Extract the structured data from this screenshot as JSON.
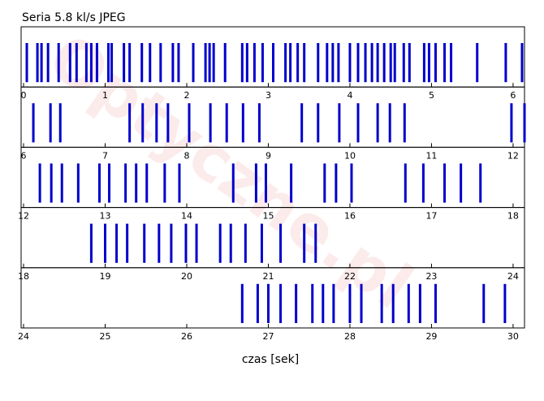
{
  "chart_data": [
    {
      "type": "event",
      "title": "Seria 5.8 kl/s JPEG",
      "color": "#0000cc",
      "xlim": [
        -0.03,
        6.14
      ],
      "xticks": [
        0,
        1,
        2,
        3,
        4,
        5,
        6
      ],
      "x": [
        0.04,
        0.17,
        0.22,
        0.3,
        0.43,
        0.57,
        0.65,
        0.77,
        0.83,
        0.9,
        1.04,
        1.08,
        1.23,
        1.3,
        1.45,
        1.55,
        1.68,
        1.83,
        1.9,
        2.08,
        2.23,
        2.28,
        2.33,
        2.47,
        2.68,
        2.74,
        2.83,
        2.93,
        3.06,
        3.21,
        3.27,
        3.36,
        3.44,
        3.61,
        3.72,
        3.79,
        3.86,
        4.0,
        4.1,
        4.19,
        4.27,
        4.34,
        4.42,
        4.5,
        4.55,
        4.66,
        4.73,
        4.91,
        4.97,
        5.05,
        5.16,
        5.24,
        5.56,
        5.91,
        6.11
      ]
    },
    {
      "type": "event",
      "color": "#0000cc",
      "xlim": [
        5.97,
        12.14
      ],
      "xticks": [
        6,
        7,
        8,
        9,
        10,
        11,
        12
      ],
      "x": [
        6.12,
        6.33,
        6.45,
        7.3,
        7.46,
        7.63,
        7.77,
        8.03,
        8.29,
        8.49,
        8.69,
        8.89,
        9.41,
        9.61,
        9.87,
        10.1,
        10.34,
        10.49,
        10.67,
        11.98,
        12.14
      ]
    },
    {
      "type": "event",
      "color": "#0000cc",
      "xlim": [
        11.97,
        18.14
      ],
      "xticks": [
        12,
        13,
        14,
        15,
        16,
        17,
        18
      ],
      "x": [
        12.2,
        12.34,
        12.47,
        12.67,
        12.93,
        13.05,
        13.25,
        13.38,
        13.51,
        13.73,
        13.91,
        14.57,
        14.85,
        14.97,
        15.28,
        15.69,
        15.83,
        16.02,
        16.68,
        16.9,
        17.16,
        17.36,
        17.6
      ]
    },
    {
      "type": "event",
      "color": "#0000cc",
      "xlim": [
        17.97,
        24.14
      ],
      "xticks": [
        18,
        19,
        20,
        21,
        22,
        23,
        24
      ],
      "x": [
        18.83,
        19.0,
        19.14,
        19.27,
        19.48,
        19.66,
        19.81,
        19.99,
        20.12,
        20.41,
        20.54,
        20.72,
        20.92,
        21.15,
        21.44,
        21.58
      ]
    },
    {
      "type": "event",
      "color": "#0000cc",
      "xlim": [
        23.97,
        30.14
      ],
      "xticks": [
        24,
        25,
        26,
        27,
        28,
        29,
        30
      ],
      "xlabel": "czas [sek]",
      "x": [
        26.68,
        26.87,
        27.0,
        27.15,
        27.34,
        27.54,
        27.67,
        27.8,
        28.0,
        28.14,
        28.39,
        28.53,
        28.72,
        28.86,
        29.05,
        29.64,
        29.9
      ]
    }
  ],
  "watermark": "Optyczne.pl"
}
